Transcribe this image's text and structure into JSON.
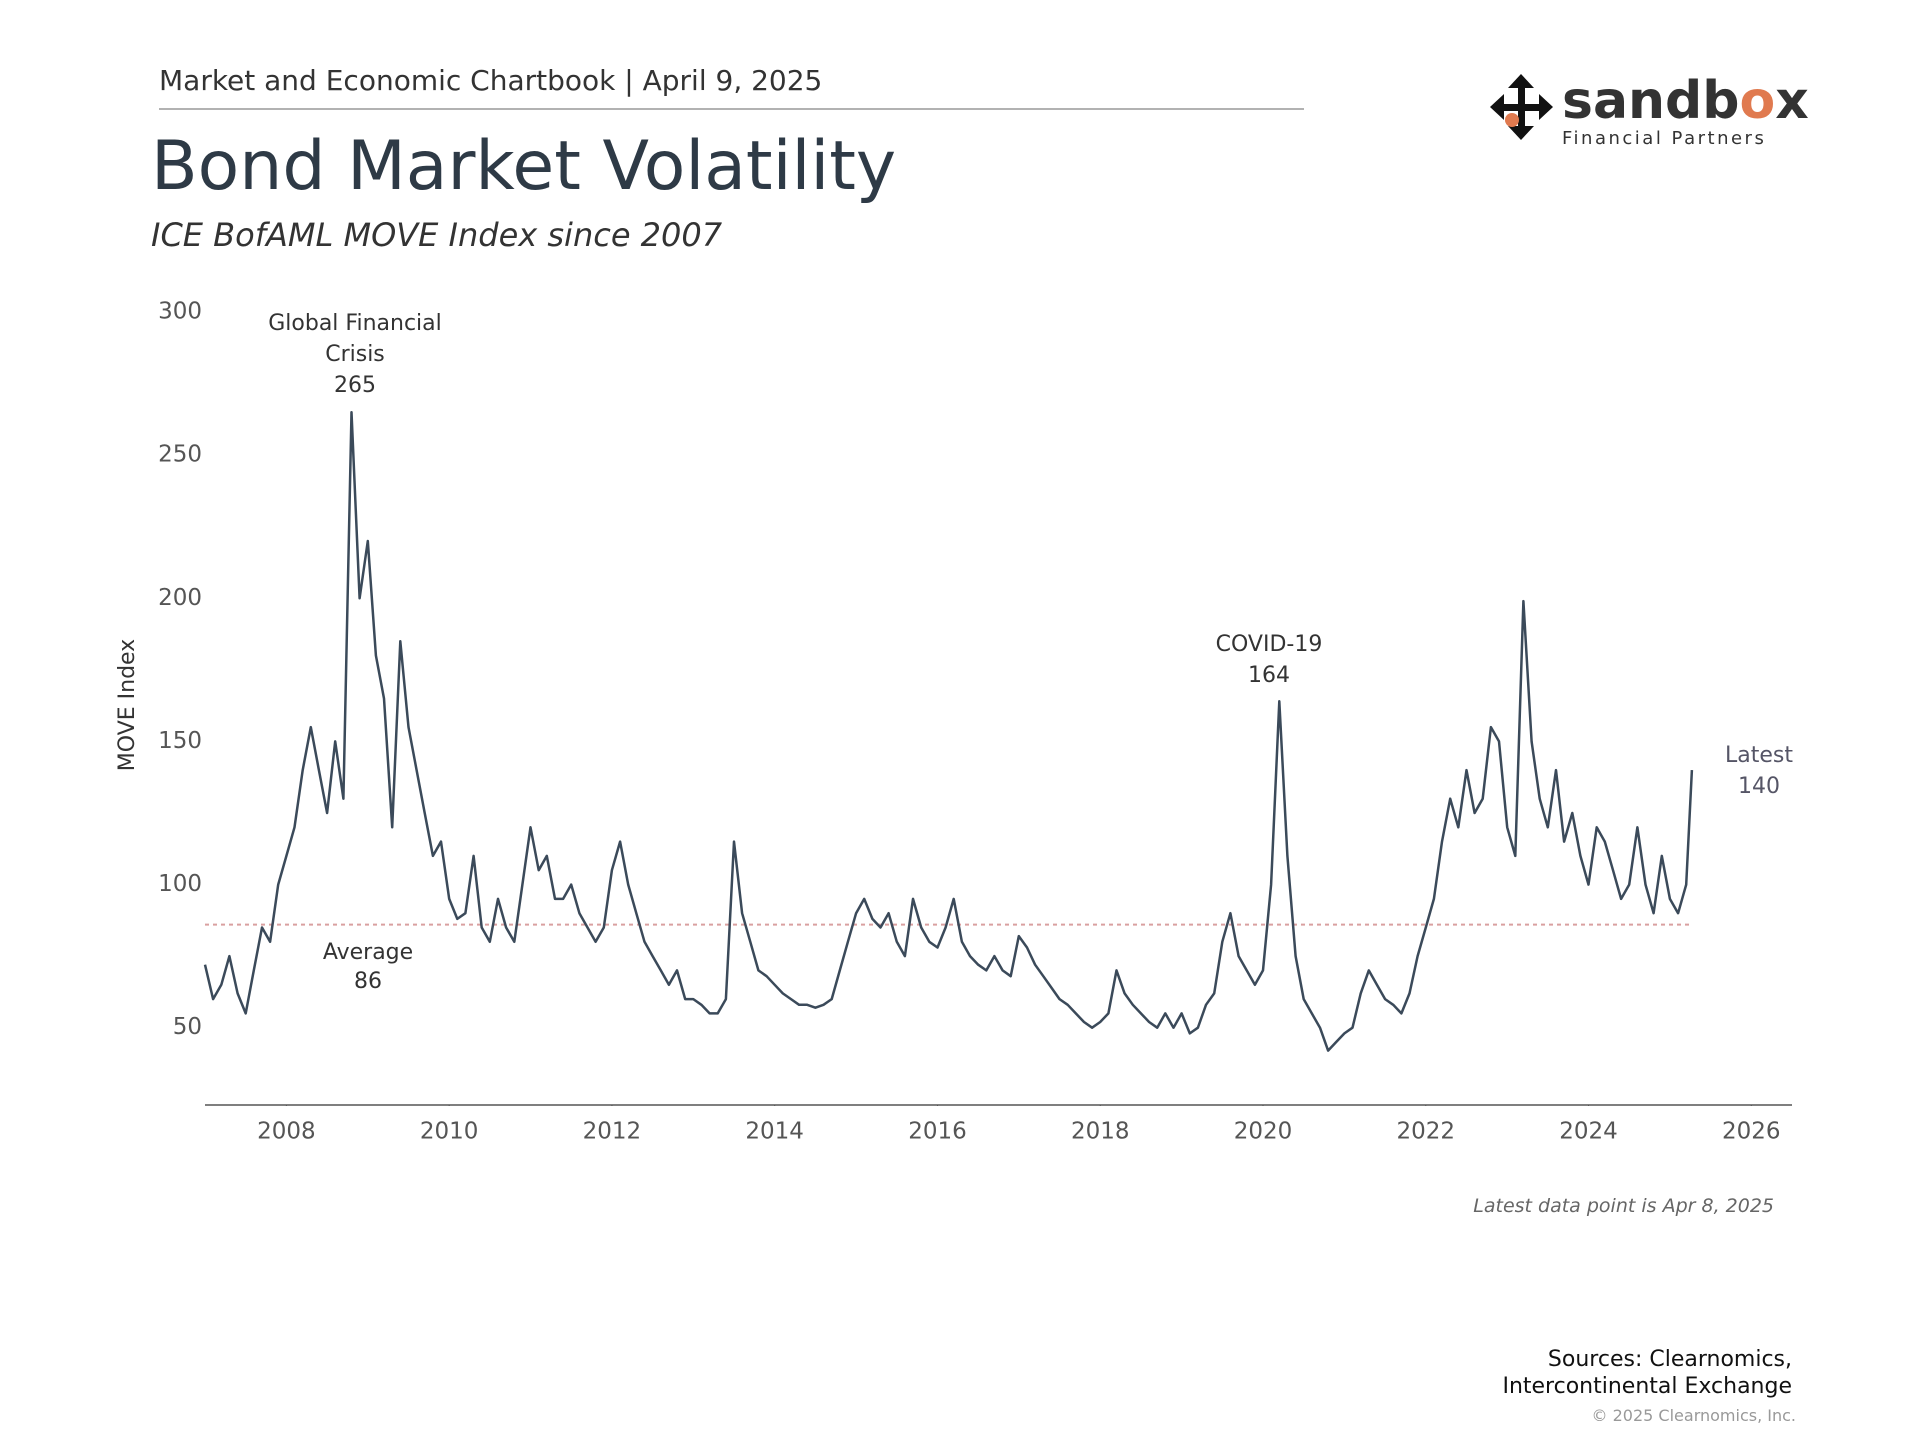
{
  "header": "Market and Economic Chartbook | April 9, 2025",
  "logo": {
    "parts": [
      "sandb",
      "o",
      "x"
    ],
    "tagline": "Financial Partners"
  },
  "chart_data": {
    "type": "line",
    "title": "Bond Market Volatility",
    "subtitle": "ICE BofAML MOVE Index since 2007",
    "y_label": "MOVE Index",
    "x": [
      2007.0,
      2007.1,
      2007.2,
      2007.3,
      2007.4,
      2007.5,
      2007.6,
      2007.7,
      2007.8,
      2007.9,
      2008.0,
      2008.1,
      2008.2,
      2008.3,
      2008.4,
      2008.5,
      2008.6,
      2008.7,
      2008.8,
      2008.9,
      2009.0,
      2009.1,
      2009.2,
      2009.3,
      2009.4,
      2009.5,
      2009.6,
      2009.7,
      2009.8,
      2009.9,
      2010.0,
      2010.1,
      2010.2,
      2010.3,
      2010.4,
      2010.5,
      2010.6,
      2010.7,
      2010.8,
      2010.9,
      2011.0,
      2011.1,
      2011.2,
      2011.3,
      2011.4,
      2011.5,
      2011.6,
      2011.7,
      2011.8,
      2011.9,
      2012.0,
      2012.1,
      2012.2,
      2012.3,
      2012.4,
      2012.5,
      2012.6,
      2012.7,
      2012.8,
      2012.9,
      2013.0,
      2013.1,
      2013.2,
      2013.3,
      2013.4,
      2013.5,
      2013.6,
      2013.7,
      2013.8,
      2013.9,
      2014.0,
      2014.1,
      2014.2,
      2014.3,
      2014.4,
      2014.5,
      2014.6,
      2014.7,
      2014.8,
      2014.9,
      2015.0,
      2015.1,
      2015.2,
      2015.3,
      2015.4,
      2015.5,
      2015.6,
      2015.7,
      2015.8,
      2015.9,
      2016.0,
      2016.1,
      2016.2,
      2016.3,
      2016.4,
      2016.5,
      2016.6,
      2016.7,
      2016.8,
      2016.9,
      2017.0,
      2017.1,
      2017.2,
      2017.3,
      2017.4,
      2017.5,
      2017.6,
      2017.7,
      2017.8,
      2017.9,
      2018.0,
      2018.1,
      2018.2,
      2018.3,
      2018.4,
      2018.5,
      2018.6,
      2018.7,
      2018.8,
      2018.9,
      2019.0,
      2019.1,
      2019.2,
      2019.3,
      2019.4,
      2019.5,
      2019.6,
      2019.7,
      2019.8,
      2019.9,
      2020.0,
      2020.1,
      2020.2,
      2020.3,
      2020.4,
      2020.5,
      2020.6,
      2020.7,
      2020.8,
      2020.9,
      2021.0,
      2021.1,
      2021.2,
      2021.3,
      2021.4,
      2021.5,
      2021.6,
      2021.7,
      2021.8,
      2021.9,
      2022.0,
      2022.1,
      2022.2,
      2022.3,
      2022.4,
      2022.5,
      2022.6,
      2022.7,
      2022.8,
      2022.9,
      2023.0,
      2023.1,
      2023.2,
      2023.3,
      2023.4,
      2023.5,
      2023.6,
      2023.7,
      2023.8,
      2023.9,
      2024.0,
      2024.1,
      2024.2,
      2024.3,
      2024.4,
      2024.5,
      2024.6,
      2024.7,
      2024.8,
      2024.9,
      2025.0,
      2025.1,
      2025.2,
      2025.27
    ],
    "series": [
      {
        "name": "MOVE Index",
        "color": "#3b4a5a",
        "values": [
          72,
          60,
          65,
          75,
          62,
          55,
          70,
          85,
          80,
          100,
          110,
          120,
          140,
          155,
          140,
          125,
          150,
          130,
          265,
          200,
          220,
          180,
          165,
          120,
          185,
          155,
          140,
          125,
          110,
          115,
          95,
          88,
          90,
          110,
          85,
          80,
          95,
          85,
          80,
          100,
          120,
          105,
          110,
          95,
          95,
          100,
          90,
          85,
          80,
          85,
          105,
          115,
          100,
          90,
          80,
          75,
          70,
          65,
          70,
          60,
          60,
          58,
          55,
          55,
          60,
          115,
          90,
          80,
          70,
          68,
          65,
          62,
          60,
          58,
          58,
          57,
          58,
          60,
          70,
          80,
          90,
          95,
          88,
          85,
          90,
          80,
          75,
          95,
          85,
          80,
          78,
          85,
          95,
          80,
          75,
          72,
          70,
          75,
          70,
          68,
          82,
          78,
          72,
          68,
          64,
          60,
          58,
          55,
          52,
          50,
          52,
          55,
          70,
          62,
          58,
          55,
          52,
          50,
          55,
          50,
          55,
          48,
          50,
          58,
          62,
          80,
          90,
          75,
          70,
          65,
          70,
          100,
          164,
          110,
          75,
          60,
          55,
          50,
          42,
          45,
          48,
          50,
          62,
          70,
          65,
          60,
          58,
          55,
          62,
          75,
          85,
          95,
          115,
          130,
          120,
          140,
          125,
          130,
          155,
          150,
          120,
          110,
          199,
          150,
          130,
          120,
          140,
          115,
          125,
          110,
          100,
          120,
          115,
          105,
          95,
          100,
          120,
          100,
          90,
          110,
          95,
          90,
          100,
          140
        ]
      }
    ],
    "xlim": [
      2007,
      2026.5
    ],
    "xticks": [
      2008,
      2010,
      2012,
      2014,
      2016,
      2018,
      2020,
      2022,
      2024,
      2026
    ],
    "ylim": [
      23,
      300
    ],
    "yticks": [
      50,
      100,
      150,
      200,
      250,
      300
    ],
    "average": {
      "label": "Average",
      "value": 86,
      "color": "#d9a0a0"
    },
    "annotations": [
      {
        "text": [
          "Global Financial",
          "Crisis"
        ],
        "value": 265
      },
      {
        "text": [
          "COVID-19"
        ],
        "value": 164
      },
      {
        "text": [
          "Latest"
        ],
        "value": 140
      }
    ],
    "note": "Latest data point is Apr 8, 2025"
  },
  "footer": {
    "sources": [
      "Sources: Clearnomics,",
      "Intercontinental Exchange"
    ],
    "copyright": "© 2025 Clearnomics, Inc."
  }
}
